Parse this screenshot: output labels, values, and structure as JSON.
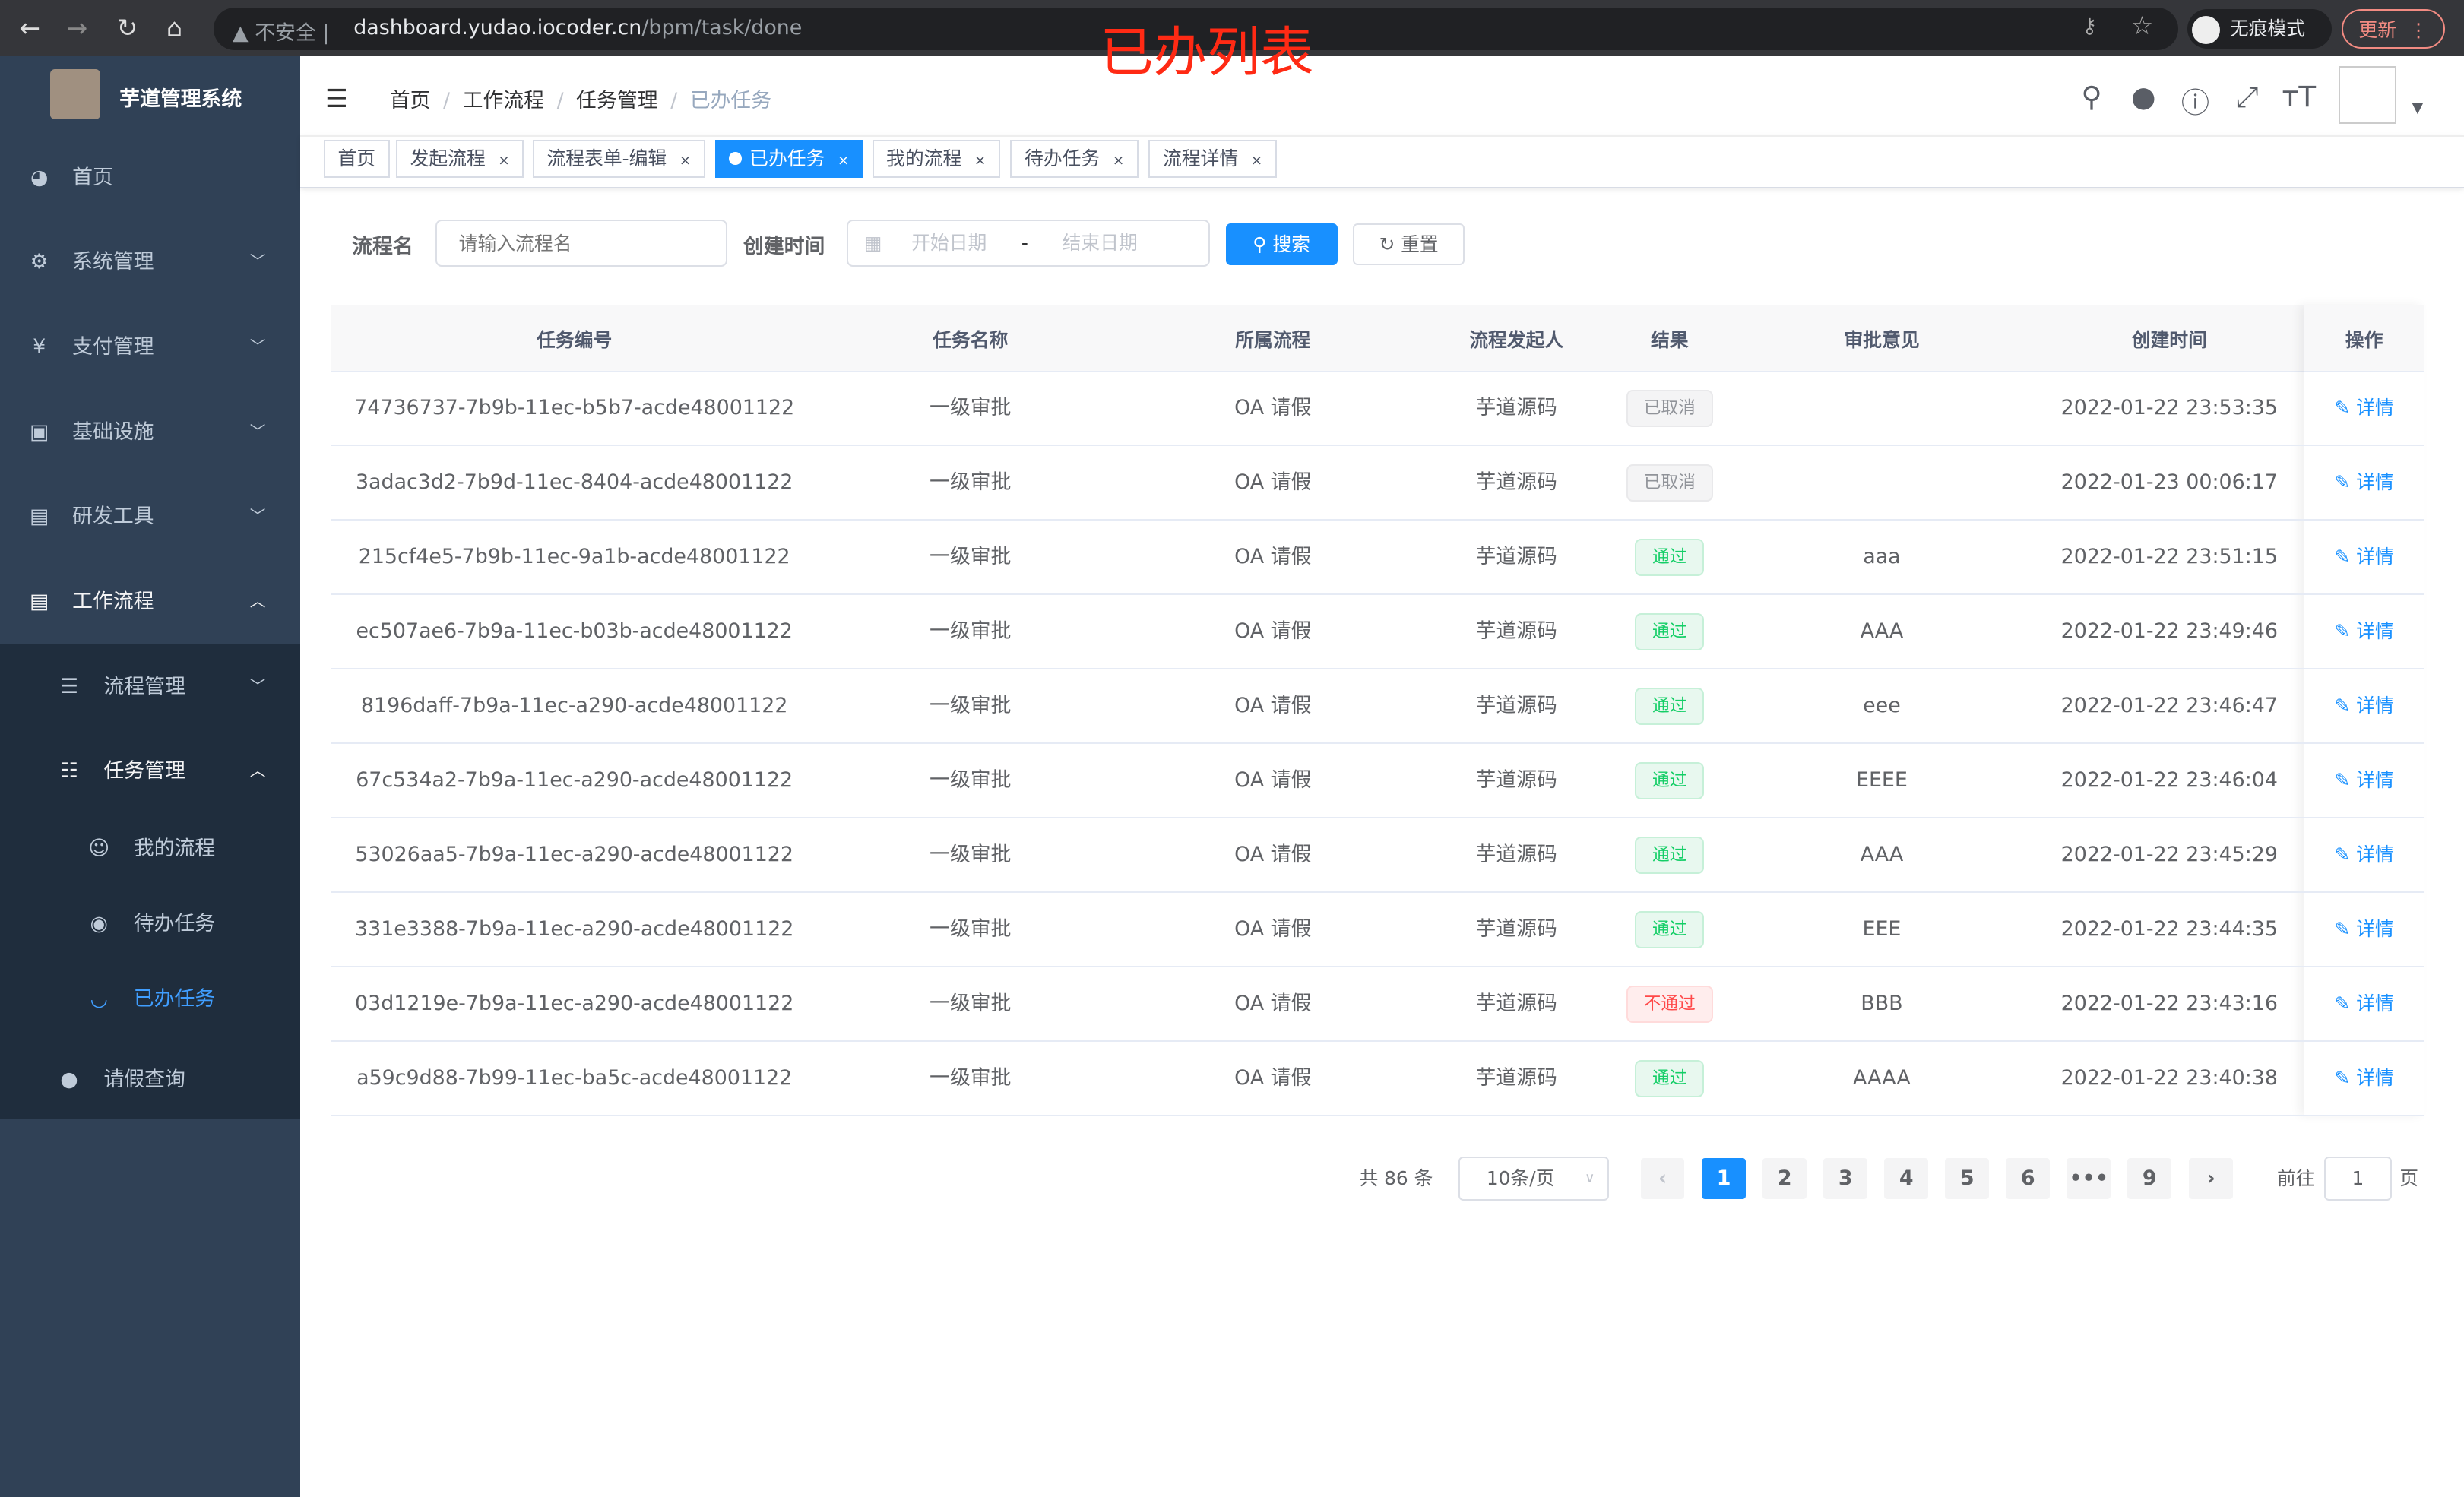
{
  "browser": {
    "insecure_label": "不安全",
    "url_host": "dashboard.yudao.iocoder.cn",
    "url_path": "/bpm/task/done",
    "incognito_label": "无痕模式",
    "update_label": "更新"
  },
  "annotation": "已办列表",
  "sidebar": {
    "brand": "芋道管理系统",
    "items": [
      {
        "label": "首页",
        "icon": "dashboard-icon"
      },
      {
        "label": "系统管理",
        "icon": "gear-icon"
      },
      {
        "label": "支付管理",
        "icon": "yen-icon"
      },
      {
        "label": "基础设施",
        "icon": "monitor-icon"
      },
      {
        "label": "研发工具",
        "icon": "toolbox-icon"
      },
      {
        "label": "工作流程",
        "icon": "toolbox-icon"
      }
    ],
    "sub_items": [
      {
        "label": "流程管理",
        "icon": "tree-icon"
      },
      {
        "label": "任务管理",
        "icon": "tree-icon"
      }
    ],
    "task_items": [
      {
        "label": "我的流程",
        "icon": "people-icon"
      },
      {
        "label": "待办任务",
        "icon": "eye-icon"
      },
      {
        "label": "已办任务",
        "icon": "eye-closed-icon"
      }
    ],
    "last_item": {
      "label": "请假查询",
      "icon": "user-icon"
    },
    "active_color": "#409eff"
  },
  "breadcrumb": [
    "首页",
    "工作流程",
    "任务管理",
    "已办任务"
  ],
  "tags": [
    {
      "label": "首页",
      "closable": false,
      "active": false
    },
    {
      "label": "发起流程",
      "closable": true,
      "active": false
    },
    {
      "label": "流程表单-编辑",
      "closable": true,
      "active": false
    },
    {
      "label": "已办任务",
      "closable": true,
      "active": true
    },
    {
      "label": "我的流程",
      "closable": true,
      "active": false
    },
    {
      "label": "待办任务",
      "closable": true,
      "active": false
    },
    {
      "label": "流程详情",
      "closable": true,
      "active": false
    }
  ],
  "search": {
    "name_label": "流程名",
    "name_placeholder": "请输入流程名",
    "time_label": "创建时间",
    "start_placeholder": "开始日期",
    "range_sep": "-",
    "end_placeholder": "结束日期",
    "search_label": "搜索",
    "reset_label": "重置"
  },
  "table": {
    "columns": [
      "任务编号",
      "任务名称",
      "所属流程",
      "流程发起人",
      "结果",
      "审批意见",
      "创建时间",
      "操作"
    ],
    "action_label": "详情",
    "rows": [
      {
        "id": "74736737-7b9b-11ec-b5b7-acde48001122",
        "name": "一级审批",
        "process": "OA 请假",
        "starter": "芋道源码",
        "result": "已取消",
        "status": "cancel",
        "comment": "",
        "time": "2022-01-22 23:53:35"
      },
      {
        "id": "3adac3d2-7b9d-11ec-8404-acde48001122",
        "name": "一级审批",
        "process": "OA 请假",
        "starter": "芋道源码",
        "result": "已取消",
        "status": "cancel",
        "comment": "",
        "time": "2022-01-23 00:06:17"
      },
      {
        "id": "215cf4e5-7b9b-11ec-9a1b-acde48001122",
        "name": "一级审批",
        "process": "OA 请假",
        "starter": "芋道源码",
        "result": "通过",
        "status": "pass",
        "comment": "aaa",
        "time": "2022-01-22 23:51:15"
      },
      {
        "id": "ec507ae6-7b9a-11ec-b03b-acde48001122",
        "name": "一级审批",
        "process": "OA 请假",
        "starter": "芋道源码",
        "result": "通过",
        "status": "pass",
        "comment": "AAA",
        "time": "2022-01-22 23:49:46"
      },
      {
        "id": "8196daff-7b9a-11ec-a290-acde48001122",
        "name": "一级审批",
        "process": "OA 请假",
        "starter": "芋道源码",
        "result": "通过",
        "status": "pass",
        "comment": "eee",
        "time": "2022-01-22 23:46:47"
      },
      {
        "id": "67c534a2-7b9a-11ec-a290-acde48001122",
        "name": "一级审批",
        "process": "OA 请假",
        "starter": "芋道源码",
        "result": "通过",
        "status": "pass",
        "comment": "EEEE",
        "time": "2022-01-22 23:46:04"
      },
      {
        "id": "53026aa5-7b9a-11ec-a290-acde48001122",
        "name": "一级审批",
        "process": "OA 请假",
        "starter": "芋道源码",
        "result": "通过",
        "status": "pass",
        "comment": "AAA",
        "time": "2022-01-22 23:45:29"
      },
      {
        "id": "331e3388-7b9a-11ec-a290-acde48001122",
        "name": "一级审批",
        "process": "OA 请假",
        "starter": "芋道源码",
        "result": "通过",
        "status": "pass",
        "comment": "EEE",
        "time": "2022-01-22 23:44:35"
      },
      {
        "id": "03d1219e-7b9a-11ec-a290-acde48001122",
        "name": "一级审批",
        "process": "OA 请假",
        "starter": "芋道源码",
        "result": "不通过",
        "status": "reject",
        "comment": "BBB",
        "time": "2022-01-22 23:43:16"
      },
      {
        "id": "a59c9d88-7b99-11ec-ba5c-acde48001122",
        "name": "一级审批",
        "process": "OA 请假",
        "starter": "芋道源码",
        "result": "通过",
        "status": "pass",
        "comment": "AAAA",
        "time": "2022-01-22 23:40:38"
      }
    ]
  },
  "status_colors": {
    "cancel": {
      "bg": "#f4f4f5",
      "border": "#e9e9eb",
      "text": "#909399"
    },
    "pass": {
      "bg": "#e8f8ef",
      "border": "#c6f0d8",
      "text": "#13ce66"
    },
    "reject": {
      "bg": "#ffeded",
      "border": "#ffdbdb",
      "text": "#ff4949"
    }
  },
  "pagination": {
    "total_label": "共 86 条",
    "page_size": "10条/页",
    "pages": [
      "1",
      "2",
      "3",
      "4",
      "5",
      "6",
      "•••",
      "9"
    ],
    "current": "1",
    "goto_label": "前往",
    "goto_value": "1",
    "page_suffix": "页"
  }
}
